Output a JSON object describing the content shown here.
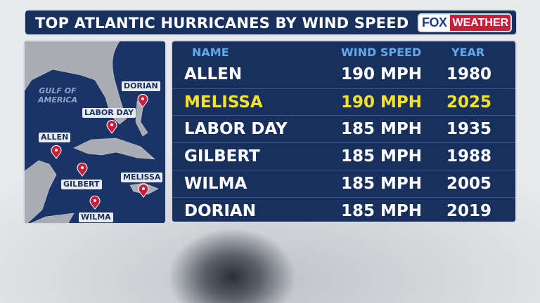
{
  "title": "TOP ATLANTIC HURRICANES BY WIND SPEED",
  "logo": {
    "fox": "FOX",
    "weather": "WEATHER"
  },
  "map": {
    "water_label": "GULF OF AMERICA",
    "markers": [
      "DORIAN",
      "LABOR DAY",
      "ALLEN",
      "GILBERT",
      "MELISSA",
      "WILMA"
    ]
  },
  "table": {
    "headers": [
      "NAME",
      "WIND SPEED",
      "YEAR"
    ],
    "rows": [
      {
        "name": "ALLEN",
        "wind": "190 MPH",
        "year": "1980"
      },
      {
        "name": "MELISSA",
        "wind": "190 MPH",
        "year": "2025",
        "highlight": true
      },
      {
        "name": "LABOR DAY",
        "wind": "185 MPH",
        "year": "1935"
      },
      {
        "name": "GILBERT",
        "wind": "185 MPH",
        "year": "1988"
      },
      {
        "name": "WILMA",
        "wind": "185 MPH",
        "year": "2005"
      },
      {
        "name": "DORIAN",
        "wind": "185 MPH",
        "year": "2019"
      }
    ]
  },
  "colors": {
    "navy": "#17305e",
    "highlight": "#f5e12a",
    "header": "#62a8ea",
    "marker": "#c8203a"
  }
}
